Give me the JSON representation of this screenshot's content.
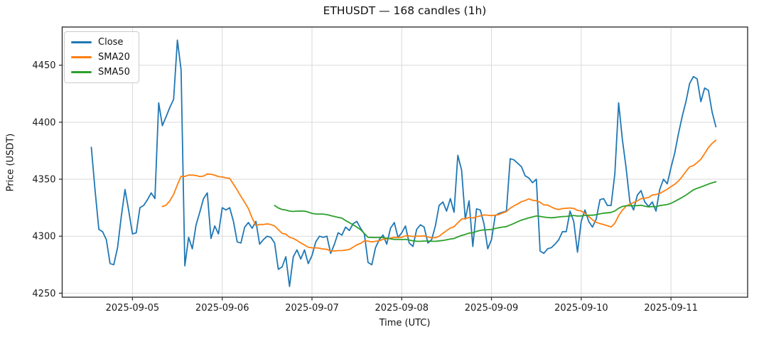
{
  "figure": {
    "title": "ETHUSDT — 168 candles (1h)",
    "xlabel": "Time (UTC)",
    "ylabel": "Price (USDT)"
  },
  "axes": {
    "grid": true,
    "y_ticks": [
      4250,
      4300,
      4350,
      4400,
      4450
    ],
    "x_ticks": [
      {
        "label": "2025-09-05",
        "hour_index": 11
      },
      {
        "label": "2025-09-06",
        "hour_index": 35
      },
      {
        "label": "2025-09-07",
        "hour_index": 59
      },
      {
        "label": "2025-09-08",
        "hour_index": 83
      },
      {
        "label": "2025-09-09",
        "hour_index": 107
      },
      {
        "label": "2025-09-10",
        "hour_index": 131
      },
      {
        "label": "2025-09-11",
        "hour_index": 155
      }
    ],
    "ylim": [
      4246.5,
      4483.5
    ],
    "xlim_hour_index": [
      -7.8,
      175.5
    ]
  },
  "legend": {
    "position": "upper-left"
  },
  "chart_data": {
    "type": "line",
    "title": "ETHUSDT — 168 candles (1h)",
    "xlabel": "Time (UTC)",
    "ylabel": "Price (USDT)",
    "symbol": "ETHUSDT",
    "interval": "1h",
    "num_candles": 168,
    "x_start": "2025-09-04 13:00",
    "x_end": "2025-09-11 12:00",
    "x_interval_hours": 1,
    "series": [
      {
        "name": "Close",
        "color": "#1f77b4",
        "kind": "raw"
      },
      {
        "name": "SMA20",
        "color": "#ff7f0e",
        "kind": "sma",
        "window": 20
      },
      {
        "name": "SMA50",
        "color": "#2ca02c",
        "kind": "sma",
        "window": 50
      }
    ],
    "close": [
      4378,
      4340,
      4306,
      4304,
      4297,
      4276,
      4275,
      4290,
      4317,
      4341,
      4322,
      4302,
      4303,
      4325,
      4327,
      4332,
      4338,
      4333,
      4417,
      4397,
      4405,
      4413,
      4420,
      4472,
      4446,
      4274,
      4299,
      4289,
      4310,
      4321,
      4333,
      4338,
      4298,
      4309,
      4302,
      4325,
      4323,
      4325,
      4313,
      4295,
      4294,
      4308,
      4312,
      4307,
      4313,
      4293,
      4297,
      4300,
      4299,
      4294,
      4271,
      4273,
      4282,
      4256,
      4282,
      4288,
      4280,
      4288,
      4276,
      4283,
      4295,
      4300,
      4299,
      4300,
      4285,
      4293,
      4303,
      4301,
      4308,
      4305,
      4311,
      4313,
      4307,
      4302,
      4277,
      4275,
      4290,
      4297,
      4301,
      4293,
      4307,
      4312,
      4299,
      4303,
      4309,
      4294,
      4291,
      4306,
      4310,
      4308,
      4294,
      4297,
      4309,
      4327,
      4330,
      4322,
      4333,
      4321,
      4371,
      4358,
      4315,
      4331,
      4291,
      4324,
      4323,
      4311,
      4289,
      4297,
      4318,
      4320,
      4321,
      4322,
      4368,
      4367,
      4364,
      4361,
      4353,
      4351,
      4347,
      4350,
      4287,
      4285,
      4289,
      4290,
      4293,
      4297,
      4304,
      4304,
      4322,
      4313,
      4286,
      4313,
      4323,
      4313,
      4308,
      4315,
      4332,
      4333,
      4327,
      4327,
      4355,
      4417,
      4385,
      4360,
      4330,
      4323,
      4336,
      4340,
      4330,
      4326,
      4330,
      4322,
      4341,
      4350,
      4346,
      4360,
      4373,
      4390,
      4405,
      4418,
      4434,
      4440,
      4438,
      4418,
      4430,
      4428,
      4409,
      4396
    ]
  }
}
